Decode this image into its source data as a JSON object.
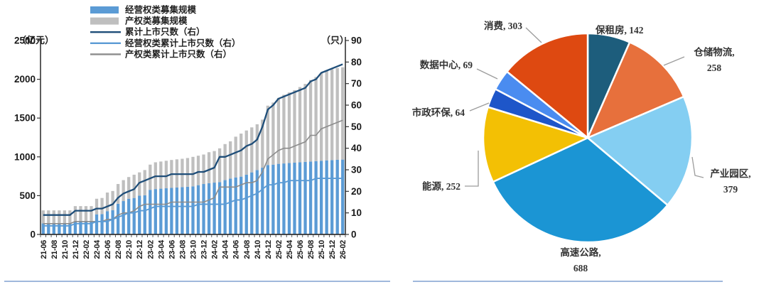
{
  "divider_color": "#9fb8dc",
  "chart_data": [
    {
      "type": "bar",
      "subtype": "stacked-bars-with-lines",
      "title": "",
      "x": [
        "21-06",
        "21-07",
        "21-08",
        "21-09",
        "21-10",
        "21-11",
        "21-12",
        "22-01",
        "22-02",
        "22-03",
        "22-04",
        "22-05",
        "22-06",
        "22-07",
        "22-08",
        "22-09",
        "22-10",
        "22-11",
        "22-12",
        "23-01",
        "23-02",
        "23-03",
        "23-04",
        "23-05",
        "23-06",
        "23-07",
        "23-08",
        "23-09",
        "23-10",
        "23-11",
        "23-12",
        "24-01",
        "24-02",
        "24-03",
        "24-04",
        "24-05",
        "24-06",
        "24-07",
        "24-08",
        "24-09",
        "24-10",
        "24-11",
        "24-12",
        "25-01",
        "25-02",
        "25-03",
        "25-04",
        "25-05",
        "25-06",
        "25-07",
        "25-08",
        "25-09",
        "25-10",
        "25-11",
        "25-12",
        "26-01",
        "26-02"
      ],
      "x_tick_every": 2,
      "left_axis": {
        "unit_label": "（亿元）",
        "min": 0,
        "max": 2500,
        "step": 500
      },
      "right_axis": {
        "unit_label": "（只）",
        "min": 0,
        "max": 90,
        "step": 10
      },
      "grid": false,
      "legend_position": "top-left",
      "series": [
        {
          "name": "经营权类募集规模",
          "kind": "bar",
          "stack": "scale",
          "axis": "left",
          "color": "#5b9bd5",
          "values": [
            143,
            143,
            143,
            143,
            143,
            143,
            165,
            165,
            165,
            165,
            259,
            262,
            300,
            312,
            395,
            430,
            460,
            470,
            500,
            505,
            575,
            585,
            590,
            595,
            600,
            605,
            610,
            615,
            620,
            635,
            650,
            660,
            668,
            675,
            700,
            720,
            735,
            745,
            770,
            800,
            830,
            860,
            895,
            900,
            910,
            915,
            920,
            925,
            930,
            935,
            940,
            945,
            950,
            955,
            958,
            962,
            965
          ]
        },
        {
          "name": "产权类募集规模",
          "kind": "bar",
          "stack": "scale",
          "axis": "left",
          "color": "#bfbfbf",
          "values": [
            167,
            167,
            167,
            167,
            167,
            167,
            200,
            200,
            200,
            200,
            201,
            208,
            240,
            248,
            255,
            270,
            280,
            300,
            300,
            325,
            325,
            345,
            350,
            355,
            360,
            363,
            365,
            370,
            380,
            380,
            380,
            400,
            407,
            435,
            465,
            480,
            525,
            555,
            570,
            580,
            590,
            620,
            765,
            800,
            850,
            885,
            910,
            935,
            970,
            1005,
            1050,
            1085,
            1130,
            1155,
            1172,
            1183,
            1190
          ]
        },
        {
          "name": "累计上市只数（右）",
          "kind": "line",
          "axis": "right",
          "color": "#1f4e79",
          "values": [
            9,
            9,
            9,
            9,
            9,
            9,
            11,
            11,
            11,
            11,
            12,
            12,
            13,
            14,
            17,
            19,
            20,
            21,
            24,
            25,
            26,
            27,
            27,
            27,
            28,
            28,
            28,
            28,
            28,
            29,
            29,
            30,
            31,
            36,
            36,
            37,
            38,
            39,
            41,
            42,
            44,
            50,
            58,
            60,
            63,
            64,
            65,
            66,
            67,
            68,
            71,
            72,
            75,
            76,
            77,
            78,
            79
          ]
        },
        {
          "name": "经营权类累计上市只数（右）",
          "kind": "line",
          "axis": "right",
          "color": "#5b9bd5",
          "values": [
            4,
            4,
            4,
            4,
            4,
            4,
            5,
            5,
            5,
            5,
            6,
            6,
            6,
            7,
            8,
            9,
            10,
            10,
            11,
            11,
            12,
            13,
            13,
            13,
            13,
            13,
            13,
            13,
            13,
            14,
            14,
            14,
            14,
            14,
            14,
            15,
            16,
            16,
            17,
            18,
            19,
            21,
            23,
            23,
            24,
            24,
            25,
            25,
            25,
            25,
            25,
            26,
            26,
            26,
            26,
            26,
            26
          ]
        },
        {
          "name": "产权类累计上市只数（右）",
          "kind": "line",
          "axis": "right",
          "color": "#8c8c8c",
          "values": [
            5,
            5,
            5,
            5,
            5,
            5,
            6,
            6,
            6,
            6,
            6,
            6,
            7,
            7,
            9,
            10,
            10,
            11,
            13,
            14,
            14,
            14,
            14,
            14,
            15,
            15,
            15,
            15,
            15,
            15,
            15,
            16,
            17,
            22,
            22,
            22,
            22,
            23,
            24,
            24,
            25,
            29,
            35,
            37,
            39,
            40,
            40,
            41,
            42,
            43,
            46,
            46,
            49,
            50,
            51,
            52,
            53
          ]
        }
      ]
    },
    {
      "type": "pie",
      "title": "",
      "start_angle_deg": -90,
      "direction": "clockwise",
      "label_format": "label, value",
      "slices": [
        {
          "label": "保租房",
          "value": 142,
          "color": "#1d5d7c"
        },
        {
          "label": "仓储物流",
          "value": 258,
          "color": "#e7703c"
        },
        {
          "label": "产业园区",
          "value": 379,
          "color": "#84cef2"
        },
        {
          "label": "高速公路",
          "value": 688,
          "color": "#1b95d4"
        },
        {
          "label": "能源",
          "value": 252,
          "color": "#f3c004"
        },
        {
          "label": "市政环保",
          "value": 64,
          "color": "#1e56c9"
        },
        {
          "label": "数据中心",
          "value": 69,
          "color": "#4a8cf0"
        },
        {
          "label": "消费",
          "value": 303,
          "color": "#de4911"
        }
      ]
    }
  ]
}
